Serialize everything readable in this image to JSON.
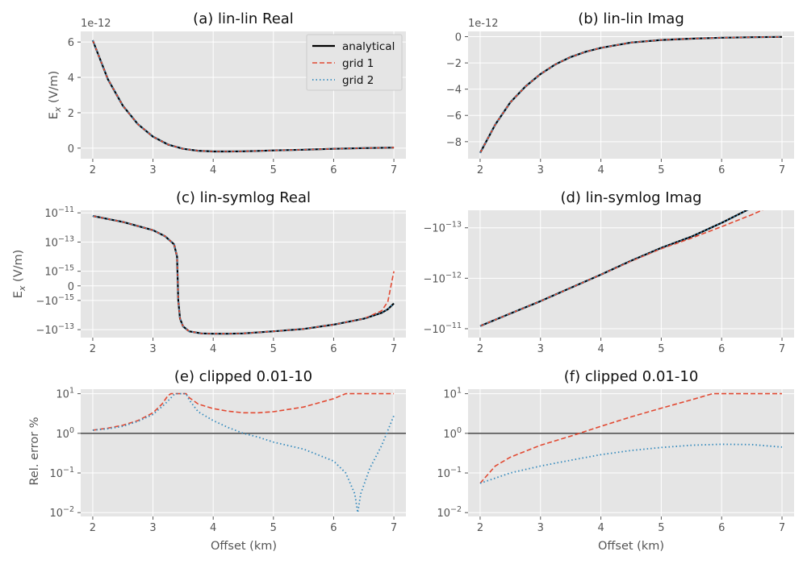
{
  "figure": {
    "xlabel": "Offset (km)",
    "ylabel_top": "E_x (V/m)",
    "ylabel_bottom": "Rel. error %",
    "colors": {
      "analytical": "#000000",
      "grid1": "#E24A33",
      "grid2": "#348ABD",
      "refline": "#555555"
    }
  },
  "legend": {
    "analytical": "analytical",
    "grid1": "grid 1",
    "grid2": "grid 2"
  },
  "chart_data": [
    {
      "id": "a",
      "type": "line",
      "title": "(a) lin-lin Real",
      "xlabel": "",
      "ylabel": "E_x (V/m)",
      "offset_text": "1e-12",
      "xlim": [
        1.8,
        7.2
      ],
      "ylim": [
        -0.6,
        6.6
      ],
      "xticks": [
        2,
        3,
        4,
        5,
        6,
        7
      ],
      "yticks": [
        0,
        2,
        4,
        6
      ],
      "x": [
        2,
        2.25,
        2.5,
        2.75,
        3,
        3.25,
        3.5,
        3.75,
        4,
        4.25,
        4.5,
        4.75,
        5,
        5.5,
        6,
        6.5,
        7
      ],
      "series": [
        {
          "name": "analytical",
          "values": [
            6.1,
            3.9,
            2.4,
            1.35,
            0.65,
            0.2,
            -0.04,
            -0.15,
            -0.19,
            -0.19,
            -0.18,
            -0.16,
            -0.13,
            -0.09,
            -0.04,
            0,
            0.03
          ]
        },
        {
          "name": "grid 1",
          "values": [
            6.1,
            3.9,
            2.4,
            1.35,
            0.65,
            0.2,
            -0.04,
            -0.15,
            -0.19,
            -0.19,
            -0.18,
            -0.16,
            -0.13,
            -0.09,
            -0.04,
            0,
            0.03
          ]
        },
        {
          "name": "grid 2",
          "values": [
            6.1,
            3.9,
            2.4,
            1.35,
            0.65,
            0.2,
            -0.04,
            -0.15,
            -0.19,
            -0.19,
            -0.18,
            -0.16,
            -0.13,
            -0.09,
            -0.04,
            0,
            0.03
          ]
        }
      ]
    },
    {
      "id": "b",
      "type": "line",
      "title": "(b) lin-lin Imag",
      "xlabel": "",
      "ylabel": "",
      "offset_text": "1e-12",
      "xlim": [
        1.8,
        7.2
      ],
      "ylim": [
        -9.3,
        0.4
      ],
      "xticks": [
        2,
        3,
        4,
        5,
        6,
        7
      ],
      "yticks": [
        0,
        -2,
        -4,
        -6,
        -8
      ],
      "x": [
        2,
        2.25,
        2.5,
        2.75,
        3,
        3.25,
        3.5,
        3.75,
        4,
        4.5,
        5,
        5.5,
        6,
        6.5,
        7
      ],
      "series": [
        {
          "name": "analytical",
          "values": [
            -8.85,
            -6.7,
            -5.0,
            -3.8,
            -2.85,
            -2.1,
            -1.55,
            -1.15,
            -0.85,
            -0.45,
            -0.25,
            -0.15,
            -0.08,
            -0.04,
            -0.02
          ]
        },
        {
          "name": "grid 1",
          "values": [
            -8.85,
            -6.7,
            -5.0,
            -3.8,
            -2.85,
            -2.1,
            -1.55,
            -1.15,
            -0.85,
            -0.45,
            -0.25,
            -0.15,
            -0.08,
            -0.04,
            -0.02
          ]
        },
        {
          "name": "grid 2",
          "values": [
            -8.85,
            -6.7,
            -5.0,
            -3.8,
            -2.85,
            -2.1,
            -1.55,
            -1.15,
            -0.85,
            -0.45,
            -0.25,
            -0.15,
            -0.08,
            -0.04,
            -0.02
          ]
        }
      ]
    },
    {
      "id": "c",
      "type": "line",
      "title": "(c) lin-symlog Real",
      "xlabel": "",
      "ylabel": "E_x (V/m)",
      "yscale": "symlog",
      "xlim": [
        1.8,
        7.2
      ],
      "xticks": [
        2,
        3,
        4,
        5,
        6,
        7
      ],
      "yticks": [
        "10^-11",
        "10^-13",
        "10^-15",
        "0",
        "-10^-15",
        "-10^-13"
      ],
      "x": [
        2,
        2.5,
        3,
        3.2,
        3.35,
        3.4,
        3.42,
        3.45,
        3.5,
        3.6,
        3.8,
        4,
        4.25,
        4.5,
        5,
        5.5,
        6,
        6.5,
        6.8,
        6.9,
        7
      ],
      "series": [
        {
          "name": "analytical",
          "values": [
            6.1e-12,
            2.4e-12,
            6.5e-13,
            2.5e-13,
            7e-14,
            1e-14,
            -1e-15,
            -1.8e-14,
            -6e-14,
            -1.3e-13,
            -1.8e-13,
            -1.9e-13,
            -1.9e-13,
            -1.8e-13,
            -1.3e-13,
            -9e-14,
            -4.5e-14,
            -1.8e-14,
            -7e-15,
            -4e-15,
            -1.6e-15
          ]
        },
        {
          "name": "grid 1",
          "values": [
            6.1e-12,
            2.4e-12,
            6.5e-13,
            2.5e-13,
            7e-14,
            1e-14,
            -1e-15,
            -1.8e-14,
            -6e-14,
            -1.3e-13,
            -1.8e-13,
            -1.9e-13,
            -1.9e-13,
            -1.8e-13,
            -1.3e-13,
            -9e-14,
            -4.5e-14,
            -1.8e-14,
            -5e-15,
            -1.2e-15,
            1e-15
          ]
        },
        {
          "name": "grid 2",
          "values": [
            6.1e-12,
            2.4e-12,
            6.5e-13,
            2.5e-13,
            7e-14,
            1e-14,
            -1e-15,
            -1.8e-14,
            -6e-14,
            -1.3e-13,
            -1.8e-13,
            -1.9e-13,
            -1.9e-13,
            -1.8e-13,
            -1.3e-13,
            -9e-14,
            -4.5e-14,
            -1.8e-14,
            -7e-15,
            -4e-15,
            -1.6e-15
          ]
        }
      ]
    },
    {
      "id": "d",
      "type": "line",
      "title": "(d) lin-symlog Imag",
      "xlabel": "",
      "ylabel": "",
      "yscale": "symlog",
      "xlim": [
        1.8,
        7.2
      ],
      "xticks": [
        2,
        3,
        4,
        5,
        6,
        7
      ],
      "yticks": [
        "-10^-13",
        "-10^-12",
        "-10^-11"
      ],
      "x": [
        2,
        2.5,
        3,
        3.5,
        4,
        4.5,
        5,
        5.5,
        6,
        6.5,
        7
      ],
      "series": [
        {
          "name": "analytical",
          "values": [
            -8.85e-12,
            -5e-12,
            -2.85e-12,
            -1.55e-12,
            -8.5e-13,
            -4.5e-13,
            -2.5e-13,
            -1.5e-13,
            -8e-14,
            -4e-14,
            -2e-14
          ]
        },
        {
          "name": "grid 1",
          "values": [
            -8.85e-12,
            -5e-12,
            -2.85e-12,
            -1.55e-12,
            -8.5e-13,
            -4.6e-13,
            -2.6e-13,
            -1.6e-13,
            -9.5e-14,
            -5.5e-14,
            -3e-14
          ]
        },
        {
          "name": "grid 2",
          "values": [
            -8.85e-12,
            -5e-12,
            -2.85e-12,
            -1.55e-12,
            -8.5e-13,
            -4.5e-13,
            -2.5e-13,
            -1.5e-13,
            -8e-14,
            -4e-14,
            -2e-14
          ]
        }
      ]
    },
    {
      "id": "e",
      "type": "line",
      "title": "(e) clipped 0.01-10",
      "xlabel": "Offset (km)",
      "ylabel": "Rel. error %",
      "yscale": "log",
      "xlim": [
        1.8,
        7.2
      ],
      "ylim": [
        0.008,
        13
      ],
      "xticks": [
        2,
        3,
        4,
        5,
        6,
        7
      ],
      "yticks": [
        "10^-2",
        "10^-1",
        "10^0",
        "10^1"
      ],
      "hline": 1,
      "x_grid1": [
        2,
        2.25,
        2.5,
        2.75,
        3,
        3.15,
        3.25,
        3.3,
        3.55,
        3.6,
        3.75,
        4,
        4.25,
        4.5,
        4.75,
        5,
        5.5,
        6,
        6.2,
        6.5,
        7
      ],
      "grid1": [
        1.2,
        1.35,
        1.6,
        2.1,
        3.3,
        5.5,
        9,
        10,
        10,
        8,
        5.5,
        4.2,
        3.6,
        3.3,
        3.3,
        3.5,
        4.6,
        7.5,
        10,
        10,
        10
      ],
      "x_grid2": [
        2,
        2.25,
        2.5,
        2.75,
        3,
        3.2,
        3.35,
        3.4,
        3.55,
        3.6,
        3.75,
        4,
        4.25,
        4.5,
        4.75,
        5,
        5.5,
        6,
        6.2,
        6.35,
        6.4,
        6.45,
        6.6,
        6.8,
        7
      ],
      "grid2": [
        1.2,
        1.3,
        1.5,
        2.0,
        3.0,
        5.5,
        9.5,
        10,
        10,
        7,
        3.5,
        2.1,
        1.4,
        1.0,
        0.8,
        0.6,
        0.4,
        0.2,
        0.1,
        0.03,
        0.01,
        0.03,
        0.13,
        0.5,
        2.8
      ]
    },
    {
      "id": "f",
      "type": "line",
      "title": "(f) clipped 0.01-10",
      "xlabel": "Offset (km)",
      "ylabel": "",
      "yscale": "log",
      "xlim": [
        1.8,
        7.2
      ],
      "ylim": [
        0.008,
        13
      ],
      "xticks": [
        2,
        3,
        4,
        5,
        6,
        7
      ],
      "yticks": [
        "10^-2",
        "10^-1",
        "10^0",
        "10^1"
      ],
      "hline": 1,
      "x_grid1": [
        2,
        2.25,
        2.5,
        3,
        3.5,
        4,
        4.5,
        5,
        5.5,
        5.85,
        6,
        6.5,
        7
      ],
      "grid1": [
        0.055,
        0.15,
        0.25,
        0.5,
        0.85,
        1.5,
        2.6,
        4.3,
        7,
        10,
        10,
        10,
        10
      ],
      "x_grid2": [
        2,
        2.5,
        3,
        3.5,
        4,
        4.5,
        5,
        5.5,
        6,
        6.5,
        7
      ],
      "grid2": [
        0.055,
        0.1,
        0.15,
        0.21,
        0.29,
        0.37,
        0.44,
        0.5,
        0.53,
        0.52,
        0.45
      ]
    }
  ]
}
